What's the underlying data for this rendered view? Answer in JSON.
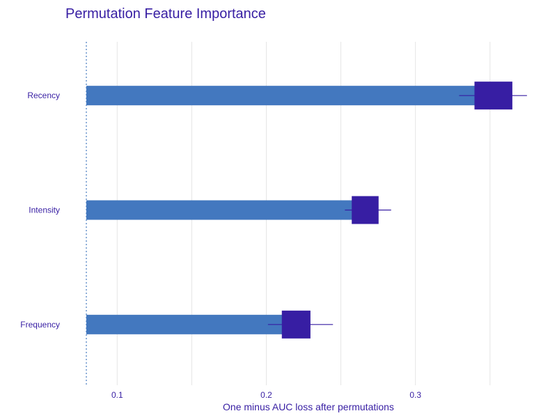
{
  "chart_data": {
    "type": "bar",
    "title": "Permutation Feature Importance",
    "xlabel": "One minus AUC loss after permutations",
    "ylabel": "",
    "categories": [
      "Recency",
      "Intensity",
      "Frequency"
    ],
    "baseline": 0.0793,
    "values": [
      0.3636,
      0.2744,
      0.2281
    ],
    "boxes": [
      {
        "q1": 0.3396,
        "q3": 0.365
      },
      {
        "q1": 0.2573,
        "q3": 0.2753
      },
      {
        "q1": 0.2104,
        "q3": 0.2296
      }
    ],
    "whiskers": [
      {
        "low": 0.3293,
        "high": 0.3748
      },
      {
        "low": 0.2527,
        "high": 0.2837
      },
      {
        "low": 0.2011,
        "high": 0.2447
      }
    ],
    "xlim": [
      0.0793,
      0.38
    ],
    "xticks": [
      0.1,
      0.15,
      0.2,
      0.25,
      0.3,
      0.35
    ],
    "xtick_labels": [
      "0.1",
      "",
      "0.2",
      "",
      "0.3",
      ""
    ],
    "grid": true,
    "colors": {
      "bar": "#4378bf",
      "box": "#371ea3",
      "text": "#371ea3",
      "grid": "#e5e5e5",
      "baseline": "#4378bf"
    }
  }
}
